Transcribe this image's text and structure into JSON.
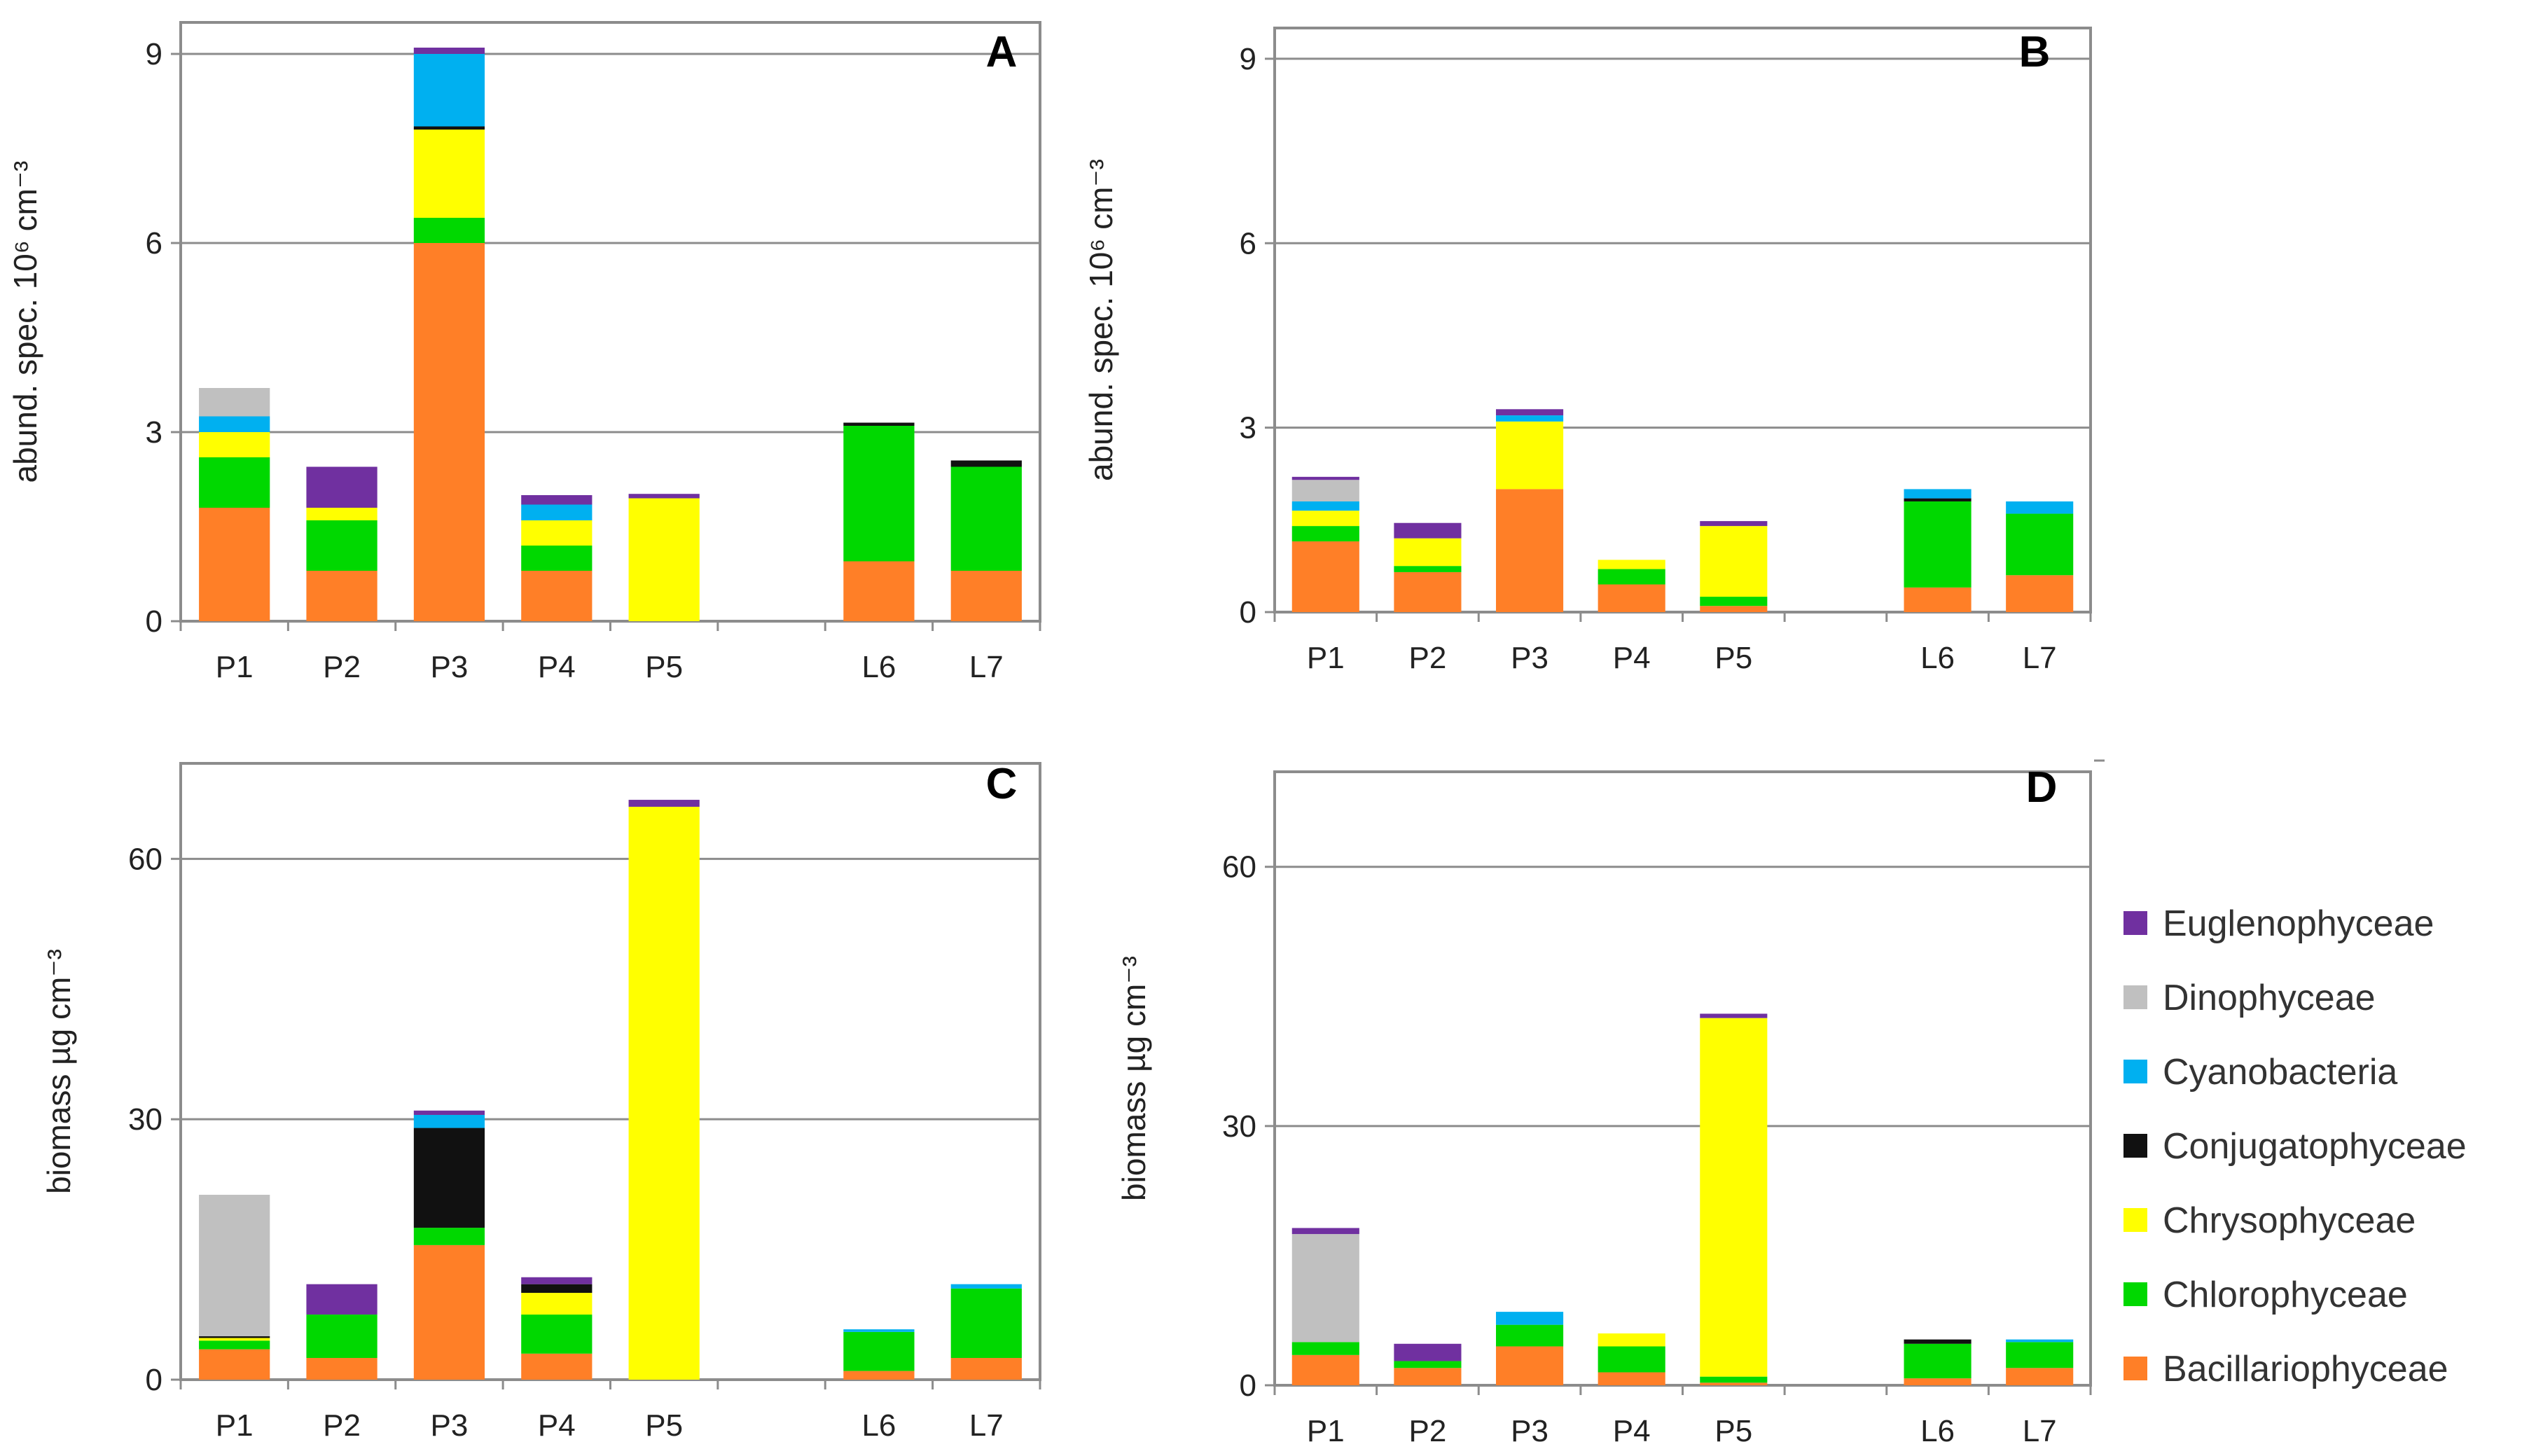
{
  "colors": {
    "Bacillariophyceae": "#ff7f27",
    "Chlorophyceae": "#00d800",
    "Chrysophyceae": "#ffff00",
    "Conjugatophyceae": "#111111",
    "Cyanobacteria": "#00b0f0",
    "Dinophyceae": "#c0c0c0",
    "Euglenophyceae": "#7030a0"
  },
  "legend": {
    "items": [
      {
        "name": "Euglenophyceae",
        "color": "#7030a0"
      },
      {
        "name": "Dinophyceae",
        "color": "#c0c0c0"
      },
      {
        "name": "Cyanobacteria",
        "color": "#00b0f0"
      },
      {
        "name": "Conjugatophyceae",
        "color": "#111111"
      },
      {
        "name": "Chrysophyceae",
        "color": "#ffff00"
      },
      {
        "name": "Chlorophyceae",
        "color": "#00d800"
      },
      {
        "name": "Bacillariophyceae",
        "color": "#ff7f27"
      }
    ]
  },
  "chart_data": [
    {
      "panel": "A",
      "type": "bar",
      "stacked": true,
      "ylabel": "abund. spec. 10⁶ cm⁻³",
      "ylim": [
        0,
        9.5
      ],
      "yticks": [
        0,
        3,
        6,
        9
      ],
      "categories": [
        "P1",
        "P2",
        "P3",
        "P4",
        "P5",
        "",
        "L6",
        "L7"
      ],
      "series": [
        {
          "name": "Bacillariophyceae",
          "values": [
            1.8,
            0.8,
            6.0,
            0.8,
            0,
            0,
            0.95,
            0.8
          ]
        },
        {
          "name": "Chlorophyceae",
          "values": [
            0.8,
            0.8,
            0.4,
            0.4,
            0,
            0,
            2.15,
            1.65
          ]
        },
        {
          "name": "Chrysophyceae",
          "values": [
            0.4,
            0.2,
            1.4,
            0.4,
            1.95,
            0,
            0,
            0
          ]
        },
        {
          "name": "Conjugatophyceae",
          "values": [
            0,
            0,
            0.05,
            0,
            0,
            0,
            0.05,
            0.1
          ]
        },
        {
          "name": "Cyanobacteria",
          "values": [
            0.25,
            0,
            1.15,
            0.25,
            0,
            0,
            0,
            0
          ]
        },
        {
          "name": "Dinophyceae",
          "values": [
            0.45,
            0,
            0,
            0,
            0,
            0,
            0,
            0
          ]
        },
        {
          "name": "Euglenophyceae",
          "values": [
            0,
            0.65,
            0.1,
            0.15,
            0.07,
            0,
            0,
            0
          ]
        }
      ]
    },
    {
      "panel": "B",
      "type": "bar",
      "stacked": true,
      "ylabel": "abund. spec. 10⁶ cm⁻³",
      "ylim": [
        0,
        9.5
      ],
      "yticks": [
        0,
        3,
        6,
        9
      ],
      "categories": [
        "P1",
        "P2",
        "P3",
        "P4",
        "P5",
        "",
        "L6",
        "L7"
      ],
      "series": [
        {
          "name": "Bacillariophyceae",
          "values": [
            1.15,
            0.65,
            2.0,
            0.45,
            0.1,
            0,
            0.4,
            0.6
          ]
        },
        {
          "name": "Chlorophyceae",
          "values": [
            0.25,
            0.1,
            0,
            0.25,
            0.15,
            0,
            1.4,
            1.0
          ]
        },
        {
          "name": "Chrysophyceae",
          "values": [
            0.25,
            0.45,
            1.1,
            0.15,
            1.15,
            0,
            0,
            0
          ]
        },
        {
          "name": "Conjugatophyceae",
          "values": [
            0,
            0,
            0,
            0,
            0,
            0,
            0.05,
            0
          ]
        },
        {
          "name": "Cyanobacteria",
          "values": [
            0.15,
            0,
            0.1,
            0,
            0,
            0,
            0.15,
            0.2
          ]
        },
        {
          "name": "Dinophyceae",
          "values": [
            0.35,
            0,
            0,
            0,
            0,
            0,
            0,
            0
          ]
        },
        {
          "name": "Euglenophyceae",
          "values": [
            0.05,
            0.25,
            0.1,
            0,
            0.08,
            0,
            0,
            0
          ]
        }
      ]
    },
    {
      "panel": "C",
      "type": "bar",
      "stacked": true,
      "ylabel": "biomass µg cm⁻³",
      "ylim": [
        0,
        71
      ],
      "yticks": [
        0,
        30,
        60
      ],
      "categories": [
        "P1",
        "P2",
        "P3",
        "P4",
        "P5",
        "",
        "L6",
        "L7"
      ],
      "series": [
        {
          "name": "Bacillariophyceae",
          "values": [
            3.5,
            2.5,
            15.5,
            3.0,
            0,
            0,
            1.0,
            2.5
          ]
        },
        {
          "name": "Chlorophyceae",
          "values": [
            1.0,
            5.0,
            2.0,
            4.5,
            0,
            0,
            4.5,
            8.0
          ]
        },
        {
          "name": "Chrysophyceae",
          "values": [
            0.3,
            0,
            0,
            2.5,
            66.0,
            0,
            0,
            0
          ]
        },
        {
          "name": "Conjugatophyceae",
          "values": [
            0.2,
            0,
            11.5,
            1.0,
            0,
            0,
            0,
            0
          ]
        },
        {
          "name": "Cyanobacteria",
          "values": [
            0,
            0,
            1.5,
            0,
            0,
            0,
            0.3,
            0.5
          ]
        },
        {
          "name": "Dinophyceae",
          "values": [
            16.3,
            0,
            0,
            0,
            0,
            0,
            0,
            0
          ]
        },
        {
          "name": "Euglenophyceae",
          "values": [
            0,
            3.5,
            0.5,
            0.8,
            0.8,
            0,
            0,
            0
          ]
        }
      ]
    },
    {
      "panel": "D",
      "type": "bar",
      "stacked": true,
      "ylabel": "biomass µg cm⁻³",
      "ylim": [
        0,
        71
      ],
      "yticks": [
        0,
        30,
        60
      ],
      "categories": [
        "P1",
        "P2",
        "P3",
        "P4",
        "P5",
        "",
        "L6",
        "L7"
      ],
      "series": [
        {
          "name": "Bacillariophyceae",
          "values": [
            3.5,
            2.0,
            4.5,
            1.5,
            0.3,
            0,
            0.8,
            2.0
          ]
        },
        {
          "name": "Chlorophyceae",
          "values": [
            1.5,
            0.8,
            2.5,
            3.0,
            0.7,
            0,
            4.0,
            3.0
          ]
        },
        {
          "name": "Chrysophyceae",
          "values": [
            0,
            0,
            0,
            1.5,
            41.5,
            0,
            0,
            0
          ]
        },
        {
          "name": "Conjugatophyceae",
          "values": [
            0,
            0,
            0,
            0,
            0,
            0,
            0.5,
            0
          ]
        },
        {
          "name": "Cyanobacteria",
          "values": [
            0,
            0,
            1.5,
            0,
            0,
            0,
            0,
            0.3
          ]
        },
        {
          "name": "Dinophyceae",
          "values": [
            12.5,
            0,
            0,
            0,
            0,
            0,
            0,
            0
          ]
        },
        {
          "name": "Euglenophyceae",
          "values": [
            0.7,
            2.0,
            0,
            0,
            0.5,
            0,
            0,
            0
          ]
        }
      ]
    }
  ]
}
